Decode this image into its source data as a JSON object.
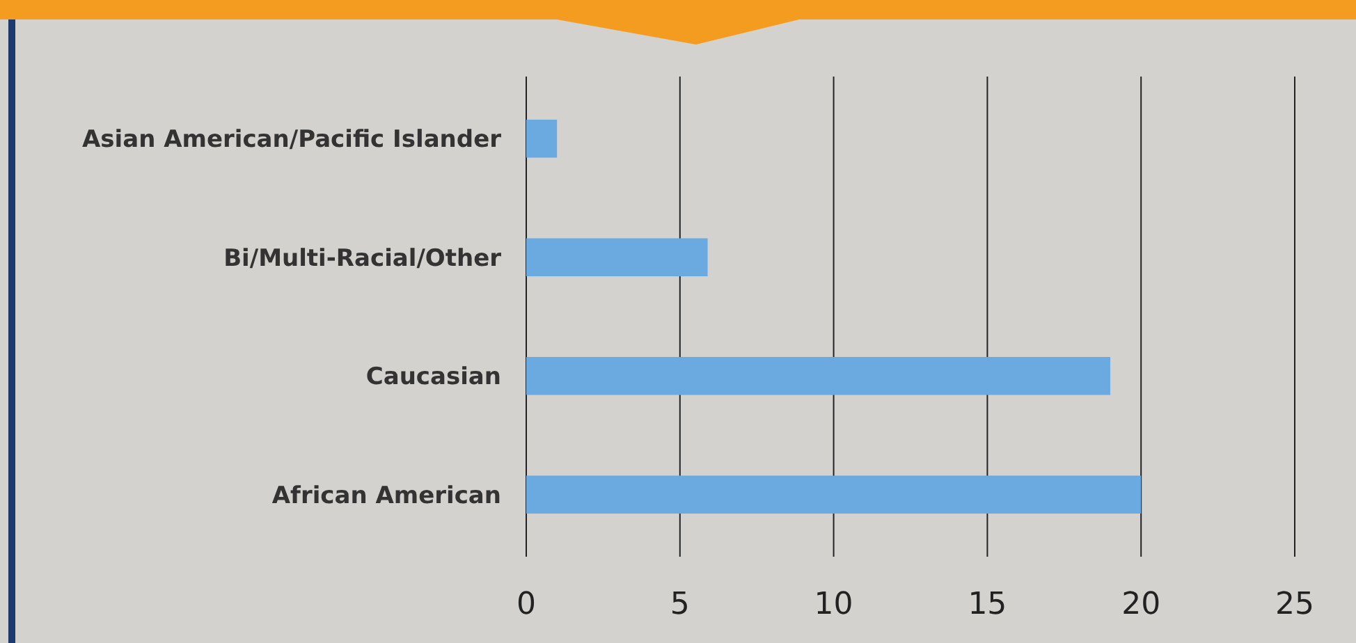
{
  "chart_data": {
    "type": "bar",
    "orientation": "horizontal",
    "categories": [
      "Asian American/Pacific Islander",
      "Bi/Multi-Racial/Other",
      "Caucasian",
      "African American"
    ],
    "values": [
      1,
      5.9,
      19,
      20
    ],
    "color": "#6aaae0",
    "xlim": [
      0,
      25
    ],
    "xticks": [
      0,
      5,
      10,
      15,
      20,
      25
    ],
    "grid": "x"
  }
}
